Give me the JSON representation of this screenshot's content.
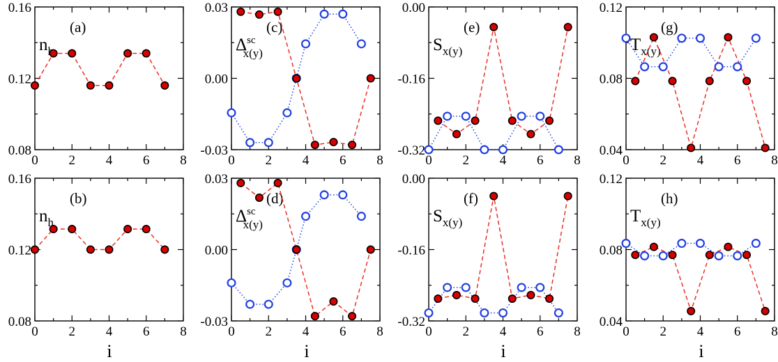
{
  "figure": {
    "xlabel": "i"
  },
  "chart_data": [
    {
      "type": "scatter",
      "panel": "(a)",
      "ylabel": {
        "main": "n",
        "sub": "h",
        "sup": ""
      },
      "xlim": [
        0,
        8
      ],
      "ylim": [
        0.08,
        0.16
      ],
      "xticks": [
        "0",
        "2",
        "4",
        "6",
        "8"
      ],
      "yticks": [
        "0.08",
        "0.12",
        "0.16"
      ],
      "series": [
        {
          "name": "red",
          "style": "red",
          "x": [
            0,
            1,
            2,
            3,
            4,
            5,
            6,
            7
          ],
          "y": [
            0.116,
            0.134,
            0.134,
            0.116,
            0.116,
            0.134,
            0.134,
            0.116
          ]
        }
      ]
    },
    {
      "type": "scatter",
      "panel": "(c)",
      "ylabel": {
        "main": "Δ",
        "sub": "x(y)",
        "sup": "sc"
      },
      "xlim": [
        0,
        8
      ],
      "ylim": [
        -0.03,
        0.03
      ],
      "xticks": [
        "0",
        "2",
        "4",
        "6",
        "8"
      ],
      "yticks": [
        "-0.03",
        "0.00",
        "0.03"
      ],
      "series": [
        {
          "name": "blue",
          "style": "blue",
          "x": [
            0,
            1,
            2,
            3,
            3.5,
            4,
            5,
            6,
            7
          ],
          "y": [
            -0.0145,
            -0.027,
            -0.027,
            -0.0145,
            0.0,
            0.0145,
            0.027,
            0.027,
            0.0145
          ]
        },
        {
          "name": "red",
          "style": "red",
          "x": [
            0.5,
            1.5,
            2.5,
            3.5,
            4.5,
            5.5,
            6.5,
            7.5
          ],
          "y": [
            0.028,
            0.0268,
            0.028,
            0.0,
            -0.028,
            -0.0268,
            -0.028,
            0.0
          ]
        }
      ]
    },
    {
      "type": "scatter",
      "panel": "(e)",
      "ylabel": {
        "main": "S",
        "sub": "x(y)",
        "sup": ""
      },
      "xlim": [
        0,
        8
      ],
      "ylim": [
        -0.32,
        0.0
      ],
      "xticks": [
        "0",
        "2",
        "4",
        "6",
        "8"
      ],
      "yticks": [
        "-0.32",
        "-0.16",
        "0.00"
      ],
      "series": [
        {
          "name": "blue",
          "style": "blue",
          "x": [
            0,
            1,
            2,
            3,
            4,
            5,
            6,
            7
          ],
          "y": [
            -0.32,
            -0.245,
            -0.245,
            -0.32,
            -0.32,
            -0.245,
            -0.245,
            -0.32
          ]
        },
        {
          "name": "red",
          "style": "red",
          "x": [
            0.5,
            1.5,
            2.5,
            3.5,
            4.5,
            5.5,
            6.5,
            7.5
          ],
          "y": [
            -0.255,
            -0.285,
            -0.255,
            -0.045,
            -0.255,
            -0.285,
            -0.255,
            -0.045
          ]
        }
      ]
    },
    {
      "type": "scatter",
      "panel": "(g)",
      "ylabel": {
        "main": "T",
        "sub": "x(y)",
        "sup": ""
      },
      "xlim": [
        0,
        8
      ],
      "ylim": [
        0.04,
        0.12
      ],
      "xticks": [
        "0",
        "2",
        "4",
        "6",
        "8"
      ],
      "yticks": [
        "0.04",
        "0.08",
        "0.12"
      ],
      "series": [
        {
          "name": "blue",
          "style": "blue",
          "x": [
            0,
            1,
            2,
            3,
            4,
            5,
            6,
            7
          ],
          "y": [
            0.1025,
            0.0865,
            0.0865,
            0.1025,
            0.1025,
            0.0865,
            0.0865,
            0.1025
          ]
        },
        {
          "name": "red",
          "style": "red",
          "x": [
            0.5,
            1.5,
            2.5,
            3.5,
            4.5,
            5.5,
            6.5,
            7.5
          ],
          "y": [
            0.0785,
            0.103,
            0.0785,
            0.041,
            0.0785,
            0.103,
            0.0785,
            0.041
          ]
        }
      ]
    },
    {
      "type": "scatter",
      "panel": "(b)",
      "ylabel": {
        "main": "n",
        "sub": "h",
        "sup": ""
      },
      "xlim": [
        0,
        8
      ],
      "ylim": [
        0.08,
        0.16
      ],
      "xticks": [
        "0",
        "2",
        "4",
        "6",
        "8"
      ],
      "yticks": [
        "0.08",
        "0.12",
        "0.16"
      ],
      "series": [
        {
          "name": "red",
          "style": "red",
          "x": [
            0,
            1,
            2,
            3,
            4,
            5,
            6,
            7
          ],
          "y": [
            0.12,
            0.1315,
            0.1315,
            0.12,
            0.12,
            0.1315,
            0.1315,
            0.12
          ]
        }
      ]
    },
    {
      "type": "scatter",
      "panel": "(d)",
      "ylabel": {
        "main": "Δ",
        "sub": "x(y)",
        "sup": "sc"
      },
      "xlim": [
        0,
        8
      ],
      "ylim": [
        -0.03,
        0.03
      ],
      "xticks": [
        "0",
        "2",
        "4",
        "6",
        "8"
      ],
      "yticks": [
        "-0.03",
        "0.00",
        "0.03"
      ],
      "series": [
        {
          "name": "blue",
          "style": "blue",
          "x": [
            0,
            1,
            2,
            3,
            3.5,
            4,
            5,
            6,
            7
          ],
          "y": [
            -0.014,
            -0.023,
            -0.023,
            -0.014,
            0.0,
            0.014,
            0.023,
            0.023,
            0.014
          ]
        },
        {
          "name": "red",
          "style": "red",
          "x": [
            0.5,
            1.5,
            2.5,
            3.5,
            4.5,
            5.5,
            6.5,
            7.5
          ],
          "y": [
            0.028,
            0.0218,
            0.028,
            0.0,
            -0.028,
            -0.0218,
            -0.028,
            0.0
          ]
        }
      ]
    },
    {
      "type": "scatter",
      "panel": "(f)",
      "ylabel": {
        "main": "S",
        "sub": "x(y)",
        "sup": ""
      },
      "xlim": [
        0,
        8
      ],
      "ylim": [
        -0.32,
        0.0
      ],
      "xticks": [
        "0",
        "2",
        "4",
        "6",
        "8"
      ],
      "yticks": [
        "-0.32",
        "-0.16",
        "0.00"
      ],
      "series": [
        {
          "name": "blue",
          "style": "blue",
          "x": [
            0,
            1,
            2,
            3,
            4,
            5,
            6,
            7
          ],
          "y": [
            -0.302,
            -0.245,
            -0.245,
            -0.302,
            -0.302,
            -0.245,
            -0.245,
            -0.302
          ]
        },
        {
          "name": "red",
          "style": "red",
          "x": [
            0.5,
            1.5,
            2.5,
            3.5,
            4.5,
            5.5,
            6.5,
            7.5
          ],
          "y": [
            -0.27,
            -0.262,
            -0.27,
            -0.04,
            -0.27,
            -0.262,
            -0.27,
            -0.04
          ]
        }
      ]
    },
    {
      "type": "scatter",
      "panel": "(h)",
      "ylabel": {
        "main": "T",
        "sub": "x(y)",
        "sup": ""
      },
      "xlim": [
        0,
        8
      ],
      "ylim": [
        0.04,
        0.12
      ],
      "xticks": [
        "0",
        "2",
        "4",
        "6",
        "8"
      ],
      "yticks": [
        "0.04",
        "0.08",
        "0.12"
      ],
      "series": [
        {
          "name": "blue",
          "style": "blue",
          "x": [
            0,
            1,
            2,
            3,
            4,
            5,
            6,
            7
          ],
          "y": [
            0.0835,
            0.0765,
            0.0765,
            0.0835,
            0.0835,
            0.0765,
            0.0765,
            0.0835
          ]
        },
        {
          "name": "red",
          "style": "red",
          "x": [
            0.5,
            1.5,
            2.5,
            3.5,
            4.5,
            5.5,
            6.5,
            7.5
          ],
          "y": [
            0.077,
            0.0815,
            0.077,
            0.0455,
            0.077,
            0.0815,
            0.077,
            0.0455
          ]
        }
      ]
    }
  ]
}
